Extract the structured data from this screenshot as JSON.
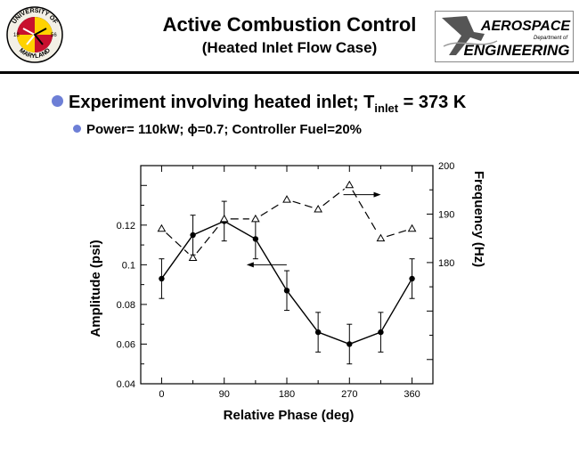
{
  "header": {
    "title_line1": "Active Combustion Control",
    "title_line2": "(Heated Inlet Flow Case)",
    "logo_left": {
      "name": "university-of-maryland-seal",
      "text_top": "UNIVERSITY OF",
      "text_bottom": "MARYLAND",
      "year_left": "18",
      "year_right": "56",
      "colors": [
        "#c8102e",
        "#ffd200",
        "#000000"
      ]
    },
    "logo_right": {
      "name": "aerospace-engineering-logo",
      "line1": "AEROSPACE",
      "small": "Department of",
      "line2": "ENGINEERING"
    }
  },
  "bullets": {
    "b1_text": "Experiment involving heated inlet; T",
    "b1_sub": "inlet",
    "b1_tail": " = 373 K",
    "b2_text": "Power= 110kW;  ϕ=0.7;  Controller Fuel=20%",
    "bullet_color": "#6d7fd6"
  },
  "chart_data": {
    "type": "line",
    "xlabel": "Relative Phase (deg)",
    "ylabel_left": "Amplitude (psi)",
    "ylabel_right": "Frequency (Hz)",
    "x_ticks": [
      0,
      90,
      180,
      270,
      360
    ],
    "xlim": [
      -30,
      390
    ],
    "left_axis": {
      "ylim": [
        0.04,
        0.15
      ],
      "ticks": [
        "0.04",
        "0.06",
        "0.08",
        "0.1",
        "0.12"
      ]
    },
    "right_axis": {
      "ylim": [
        155,
        200
      ],
      "labeled_ticks": [
        "180",
        "190",
        "200"
      ]
    },
    "series": [
      {
        "axis": "left",
        "style": "solid",
        "marker": "filled-circle",
        "x": [
          0,
          45,
          90,
          135,
          180,
          225,
          270,
          315,
          360
        ],
        "y": [
          0.093,
          0.115,
          0.122,
          0.113,
          0.087,
          0.066,
          0.06,
          0.066,
          0.093
        ],
        "error": [
          0.01,
          0.01,
          0.01,
          0.01,
          0.01,
          0.01,
          0.01,
          0.01,
          0.01
        ]
      },
      {
        "axis": "right",
        "style": "dashed",
        "marker": "open-triangle",
        "x": [
          0,
          45,
          90,
          135,
          180,
          225,
          270,
          315,
          360
        ],
        "y": [
          187,
          181,
          189,
          189,
          193,
          191,
          196,
          185,
          187
        ]
      }
    ],
    "arrows": [
      {
        "points_to": "left-axis",
        "at_x": 135,
        "at_y_left": 0.1
      },
      {
        "points_to": "right-axis",
        "at_x": 310,
        "at_y_right": 194
      }
    ]
  }
}
